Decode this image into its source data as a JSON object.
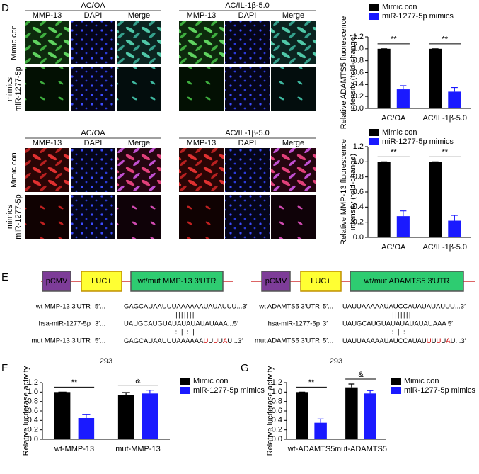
{
  "panel_labels": [
    "D",
    "E",
    "F",
    "G"
  ],
  "panel_d": {
    "groups": [
      "AC/OA",
      "AC/IL-1β-5.0"
    ],
    "channels": [
      "MMP-13",
      "DAPI",
      "Merge"
    ],
    "rows": [
      [
        "Mimic con"
      ],
      [
        "miR-1277-5p",
        "mimics"
      ]
    ]
  },
  "panel_e": {
    "constructs": [
      [
        "pCMV",
        "LUC+",
        "wt/mut MMP-13 3′UTR"
      ],
      [
        "pCMV",
        "LUC+",
        "wt/mut ADAMTS5 3′UTR"
      ]
    ],
    "alignments": [
      {
        "rows": [
          {
            "label": "wt MMP-13 3′UTR",
            "start": "5′...",
            "seq": "GAGCAUAAUUUAAAAAAUAUAUUU...3′"
          },
          {
            "label": "hsa-miR-1277-5p",
            "start": "3′...",
            "seq": "UAUGCAUGUAUAUAUAUAUAAA...5′"
          },
          {
            "label": "mut MMP-13 3′UTR",
            "start": "5′...",
            "segments": [
              "GAGCAUAAUUUAAAAAA",
              "U",
              "U",
              "U",
              "U",
              "A",
              "U...3′"
            ]
          }
        ],
        "pairs": [
          "|||||||",
          ": | : |"
        ]
      },
      {
        "rows": [
          {
            "label": "wt ADAMTS5 3′UTR",
            "start": "5′...",
            "seq": "UAUUAAAAAUAUCCAUAUAUAUUU...3′"
          },
          {
            "label": "hsa-miR-1277-5p",
            "start": "3′",
            "seq": "UAUGCAUGUAUAUAUAUAUAAA     5′"
          },
          {
            "label": "mut ADAMTS5 3′UTR",
            "start": "5′...",
            "segments": [
              "UAUUAAAAAUAUCCAUAU",
              "U",
              "U",
              "U",
              "U",
              "A",
              "U...3′"
            ]
          }
        ],
        "pairs": [
          "|||||||",
          ": | : |"
        ]
      }
    ]
  },
  "chart_data": [
    {
      "type": "bar",
      "ylabel": [
        "Relative ADAMTS5 fluorescence",
        "intensity (fold-change)"
      ],
      "categories": [
        "AC/OA",
        "AC/IL-1β-5.0"
      ],
      "series": [
        {
          "name": "Mimic con",
          "color": "#000000",
          "values": [
            1.0,
            1.0
          ],
          "errors": [
            0,
            0
          ]
        },
        {
          "name": "miR-1277-5p mimics",
          "color": "#1a1aff",
          "values": [
            0.32,
            0.28
          ],
          "errors": [
            0.06,
            0.07
          ]
        }
      ],
      "significance": [
        "**",
        "**"
      ],
      "ylim": [
        0,
        1.2
      ],
      "yticks": [
        {
          "value": 0,
          "label": "0.0"
        },
        {
          "value": 0.2,
          "label": "0.2"
        },
        {
          "value": 0.4,
          "label": "0.4"
        },
        {
          "value": 0.6,
          "label": "0.6"
        },
        {
          "value": 0.8,
          "label": "0.8"
        },
        {
          "value": 1,
          "label": "1.0"
        },
        {
          "value": 1.2,
          "label": "1.2"
        }
      ]
    },
    {
      "type": "bar",
      "ylabel": [
        "Relative MMP-13 fluorescence",
        "intensity (fold-change)"
      ],
      "categories": [
        "AC/OA",
        "AC/IL-1β-5.0"
      ],
      "series": [
        {
          "name": "Mimic con",
          "color": "#000000",
          "values": [
            1.0,
            1.0
          ],
          "errors": [
            0,
            0
          ]
        },
        {
          "name": "miR-1277-5p mimics",
          "color": "#1a1aff",
          "values": [
            0.28,
            0.22
          ],
          "errors": [
            0.07,
            0.07
          ]
        }
      ],
      "significance": [
        "**",
        "**"
      ],
      "ylim": [
        0,
        1.2
      ],
      "yticks": [
        {
          "value": 0,
          "label": "0.0"
        },
        {
          "value": 0.2,
          "label": "0.2"
        },
        {
          "value": 0.4,
          "label": "0.4"
        },
        {
          "value": 0.6,
          "label": "0.6"
        },
        {
          "value": 0.8,
          "label": "0.8"
        },
        {
          "value": 1,
          "label": "1.0"
        },
        {
          "value": 1.2,
          "label": "1.2"
        }
      ]
    },
    {
      "type": "bar",
      "title": "293",
      "ylabel": [
        "Relative luciferase activity"
      ],
      "categories": [
        "wt-MMP-13",
        "mut-MMP-13"
      ],
      "series": [
        {
          "name": "Mimic con",
          "color": "#000000",
          "values": [
            1.0,
            0.93
          ],
          "errors": [
            0,
            0.06
          ]
        },
        {
          "name": "miR-1277-5p mimics",
          "color": "#1a1aff",
          "values": [
            0.45,
            0.97
          ],
          "errors": [
            0.07,
            0.07
          ]
        }
      ],
      "significance": [
        "**",
        "&"
      ],
      "ylim": [
        0,
        1.2
      ],
      "yticks": [
        {
          "value": 0,
          "label": "0.0"
        },
        {
          "value": 0.2,
          "label": "0.2"
        },
        {
          "value": 0.4,
          "label": "0.4"
        },
        {
          "value": 0.6,
          "label": "0.6"
        },
        {
          "value": 0.8,
          "label": "0.8"
        },
        {
          "value": 1,
          "label": "1.0"
        },
        {
          "value": 1.2,
          "label": "1.2"
        }
      ]
    },
    {
      "type": "bar",
      "title": "293",
      "ylabel": [
        "Relative luciferase activity"
      ],
      "categories": [
        "wt-ADAMTS5",
        "mut-ADAMTS5"
      ],
      "series": [
        {
          "name": "Mimic con",
          "color": "#000000",
          "values": [
            1.0,
            1.1
          ],
          "errors": [
            0,
            0.07
          ]
        },
        {
          "name": "miR-1277-5p mimics",
          "color": "#1a1aff",
          "values": [
            0.35,
            0.97
          ],
          "errors": [
            0.08,
            0.06
          ]
        }
      ],
      "significance": [
        "**",
        "&"
      ],
      "ylim": [
        0,
        1.2
      ],
      "yticks": [
        {
          "value": 0,
          "label": "0.0"
        },
        {
          "value": 0.2,
          "label": "0.2"
        },
        {
          "value": 0.4,
          "label": "0.4"
        },
        {
          "value": 0.6,
          "label": "0.6"
        },
        {
          "value": 0.8,
          "label": "0.8"
        },
        {
          "value": 1,
          "label": "1.0"
        },
        {
          "value": 1.2,
          "label": "1.2"
        }
      ]
    }
  ]
}
